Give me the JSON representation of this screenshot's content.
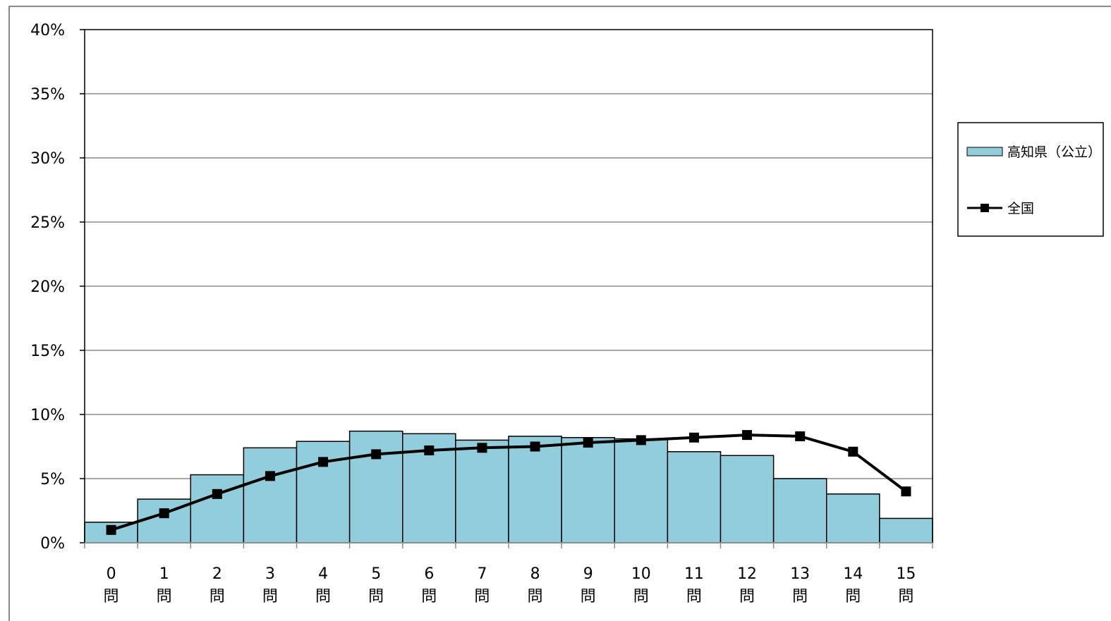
{
  "chart_data": {
    "type": "bar",
    "title": "",
    "xlabel": "",
    "ylabel": "",
    "categories": [
      "0\n問",
      "1\n問",
      "2\n問",
      "3\n問",
      "4\n問",
      "5\n問",
      "6\n問",
      "7\n問",
      "8\n問",
      "9\n問",
      "10\n問",
      "11\n問",
      "12\n問",
      "13\n問",
      "14\n問",
      "15\n問"
    ],
    "category_numbers": [
      "0",
      "1",
      "2",
      "3",
      "4",
      "5",
      "6",
      "7",
      "8",
      "9",
      "10",
      "11",
      "12",
      "13",
      "14",
      "15"
    ],
    "category_unit": "問",
    "ylim": [
      0,
      40
    ],
    "yticks": [
      "0%",
      "5%",
      "10%",
      "15%",
      "20%",
      "25%",
      "30%",
      "35%",
      "40%"
    ],
    "grid": true,
    "legend_position": "right",
    "series": [
      {
        "name": "高知県（公立）",
        "type": "bar",
        "color": "#92cddc",
        "values": [
          1.6,
          3.4,
          5.3,
          7.4,
          7.9,
          8.7,
          8.5,
          8.0,
          8.3,
          8.2,
          8.1,
          7.1,
          6.8,
          5.0,
          3.8,
          1.9
        ]
      },
      {
        "name": "全国",
        "type": "line",
        "color": "#000000",
        "marker": "square",
        "values": [
          1.0,
          2.3,
          3.8,
          5.2,
          6.3,
          6.9,
          7.2,
          7.4,
          7.5,
          7.8,
          8.0,
          8.2,
          8.4,
          8.3,
          7.1,
          4.0
        ]
      }
    ]
  }
}
